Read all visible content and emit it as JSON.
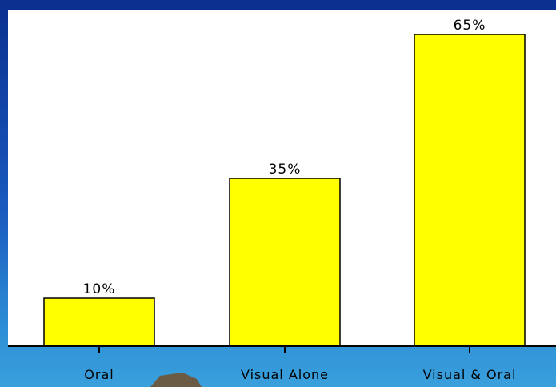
{
  "chart_data": {
    "type": "bar",
    "categories": [
      "Oral",
      "Visual Alone",
      "Visual & Oral"
    ],
    "values": [
      10,
      35,
      65
    ],
    "data_labels": [
      "10%",
      "35%",
      "65%"
    ],
    "title": "",
    "xlabel": "",
    "ylabel": "",
    "ylim": [
      0,
      70
    ],
    "grid": false,
    "legend": "none",
    "colors": {
      "bar": "#ffff00",
      "bar_edge": "#000000",
      "plot_background": "#ffffff",
      "slide_background": "#1a5bbf"
    }
  }
}
